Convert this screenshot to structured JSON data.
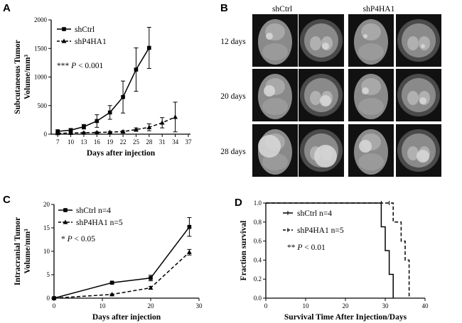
{
  "panels": {
    "A": {
      "letter": "A"
    },
    "B": {
      "letter": "B"
    },
    "C": {
      "letter": "C"
    },
    "D": {
      "letter": "D"
    }
  },
  "mri": {
    "col_labels": [
      "shCtrl",
      "shP4HA1"
    ],
    "row_labels": [
      "12 days",
      "20 days",
      "28 days"
    ],
    "colors": {
      "background": "#111111",
      "tissue": "#8a8a8a",
      "bright": "#d8d8d8"
    }
  },
  "chart_data": [
    {
      "id": "A",
      "type": "line",
      "ylabel_lines": [
        "Subcutaneous Tumor",
        "Volume/mm³"
      ],
      "xlabel": "Days after injection",
      "xticks": [
        7,
        10,
        13,
        16,
        19,
        22,
        25,
        28,
        31,
        34,
        37
      ],
      "yticks": [
        0,
        500,
        1000,
        1500,
        2000
      ],
      "xlim": [
        5.5,
        37.5
      ],
      "ylim": [
        0,
        2000
      ],
      "annotation": {
        "stars": "***",
        "p": "P",
        "rest": " < 0.001"
      },
      "series": [
        {
          "name": "shCtrl",
          "marker": "square",
          "dash": false,
          "x": [
            7,
            10,
            13,
            16,
            19,
            22,
            25,
            28
          ],
          "y": [
            50,
            70,
            130,
            230,
            380,
            650,
            1130,
            1510
          ],
          "err": [
            20,
            30,
            40,
            110,
            120,
            280,
            380,
            360
          ]
        },
        {
          "name": "shP4HA1",
          "marker": "triangle",
          "dash": true,
          "x": [
            7,
            10,
            13,
            16,
            19,
            22,
            25,
            28,
            31,
            34
          ],
          "y": [
            15,
            20,
            25,
            30,
            35,
            45,
            80,
            120,
            200,
            300
          ],
          "err": [
            8,
            8,
            10,
            10,
            12,
            15,
            30,
            60,
            90,
            260
          ]
        }
      ]
    },
    {
      "id": "C",
      "type": "line",
      "ylabel_lines": [
        "Intracranial Tumor",
        "Volume/mm³"
      ],
      "xlabel": "Days after injection",
      "xticks": [
        0,
        10,
        20,
        30
      ],
      "yticks": [
        0,
        5,
        10,
        15,
        20
      ],
      "xlim": [
        0,
        30
      ],
      "ylim": [
        0,
        20
      ],
      "annotation": {
        "stars": "*",
        "p": "P",
        "rest": " < 0.05"
      },
      "series": [
        {
          "name": "shCtrl n=4",
          "marker": "square",
          "dash": false,
          "x": [
            0,
            12,
            20,
            28
          ],
          "y": [
            0,
            3.3,
            4.3,
            15.2
          ],
          "err": [
            0,
            0.2,
            0.6,
            2.0
          ]
        },
        {
          "name": "shP4HA1 n=5",
          "marker": "triangle",
          "dash": true,
          "x": [
            0,
            12,
            20,
            28
          ],
          "y": [
            0,
            0.8,
            2.2,
            9.8
          ],
          "err": [
            0,
            0.1,
            0.3,
            0.6
          ]
        }
      ]
    },
    {
      "id": "D",
      "type": "line",
      "ylabel_lines": [
        "Fraction survival"
      ],
      "xlabel": "Survival Time After Injection/Days",
      "xticks": [
        0,
        10,
        20,
        30,
        40
      ],
      "yticks": [
        0.0,
        0.2,
        0.4,
        0.6,
        0.8,
        1.0
      ],
      "ytick_labels": [
        "0.0",
        "0.2",
        "0.4",
        "0.6",
        "0.8",
        "1.0"
      ],
      "xlim": [
        0,
        40
      ],
      "ylim": [
        0,
        1.0
      ],
      "annotation": {
        "stars": "**",
        "p": "P",
        "rest": " < 0.01"
      },
      "series": [
        {
          "name": "shCtrl n=4",
          "dash": false,
          "x": [
            0,
            29,
            29,
            30,
            30,
            31,
            31,
            32,
            32
          ],
          "y": [
            1.0,
            1.0,
            0.75,
            0.75,
            0.5,
            0.5,
            0.25,
            0.25,
            0.0
          ],
          "censor": [
            29
          ]
        },
        {
          "name": "shP4HA1 n=5",
          "dash": true,
          "x": [
            0,
            32,
            32,
            34,
            34,
            35,
            35,
            36,
            36
          ],
          "y": [
            1.0,
            1.0,
            0.8,
            0.8,
            0.6,
            0.6,
            0.4,
            0.4,
            0.0
          ],
          "censor": [
            31
          ]
        }
      ]
    }
  ]
}
